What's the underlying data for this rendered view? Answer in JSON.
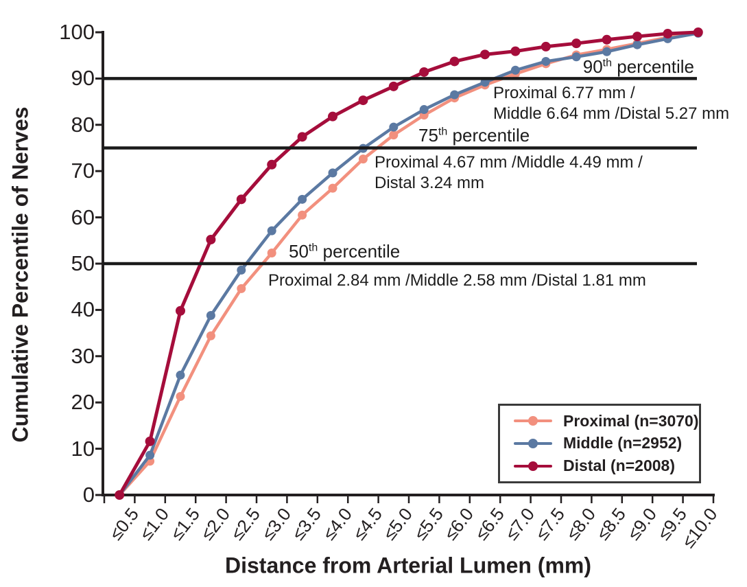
{
  "figure": {
    "y_axis_title": "Cumulative Percentile of Nerves",
    "x_axis_title": "Distance from Arterial Lumen (mm)"
  },
  "colors": {
    "axis": "#231f20",
    "reference_line": "#1a1a1a",
    "text": "#231f20",
    "background": "#ffffff",
    "proximal": "#F2907E",
    "middle": "#5B79A2",
    "distal": "#A50D3B"
  },
  "chart_data": {
    "type": "line",
    "title": "",
    "xlabel": "Distance from Arterial Lumen (mm)",
    "ylabel": "Cumulative Percentile of Nerves",
    "ylim": [
      0,
      100
    ],
    "y_ticks": [
      0,
      10,
      20,
      30,
      40,
      50,
      60,
      70,
      80,
      90,
      100
    ],
    "grid": false,
    "x_tick_rotation_deg": 52,
    "categories": [
      "≤0.5",
      "≤1.0",
      "≤1.5",
      "≤2.0",
      "≤2.5",
      "≤3.0",
      "≤3.5",
      "≤4.0",
      "≤4.5",
      "≤5.0",
      "≤5.5",
      "≤6.0",
      "≤6.5",
      "≤7.0",
      "≤7.5",
      "≤8.0",
      "≤8.5",
      "≤9.0",
      "≤9.5",
      "≤10.0"
    ],
    "series": [
      {
        "name": "Proximal (n=3070)",
        "color": "#F2907E",
        "values": [
          0,
          7.3,
          21.3,
          34.4,
          44.6,
          52.3,
          60.5,
          66.3,
          72.6,
          77.8,
          82.1,
          85.8,
          88.6,
          91.0,
          93.2,
          95.1,
          96.3,
          97.6,
          98.9,
          99.9
        ]
      },
      {
        "name": "Middle (n=2952)",
        "color": "#5B79A2",
        "values": [
          0,
          8.6,
          25.9,
          38.8,
          48.6,
          57.1,
          63.9,
          69.6,
          74.9,
          79.5,
          83.3,
          86.5,
          89.2,
          91.8,
          93.7,
          94.7,
          95.8,
          97.3,
          98.6,
          99.8
        ]
      },
      {
        "name": "Distal (n=2008)",
        "color": "#A50D3B",
        "values": [
          0,
          11.6,
          39.8,
          55.2,
          63.9,
          71.4,
          77.4,
          81.8,
          85.3,
          88.3,
          91.4,
          93.7,
          95.2,
          95.9,
          96.9,
          97.6,
          98.4,
          99.1,
          99.7,
          100
        ]
      }
    ],
    "reference_lines": [
      {
        "value": 90,
        "label_value": "90",
        "label_sup": "th",
        "label_text": "percentile",
        "detail_lines": [
          "Proximal 6.77 mm /",
          "Middle 6.64 mm /Distal 5.27 mm"
        ]
      },
      {
        "value": 75,
        "label_value": "75",
        "label_sup": "th",
        "label_text": "percentile",
        "detail_lines": [
          "Proximal 4.67 mm /Middle 4.49 mm /",
          "Distal 3.24 mm"
        ]
      },
      {
        "value": 50,
        "label_value": "50",
        "label_sup": "th",
        "label_text": "percentile",
        "detail_lines": [
          "Proximal 2.84 mm /Middle 2.58 mm /Distal 1.81 mm"
        ]
      }
    ],
    "legend": {
      "position": "lower right",
      "items": [
        "Proximal (n=3070)",
        "Middle (n=2952)",
        "Distal (n=2008)"
      ]
    }
  }
}
